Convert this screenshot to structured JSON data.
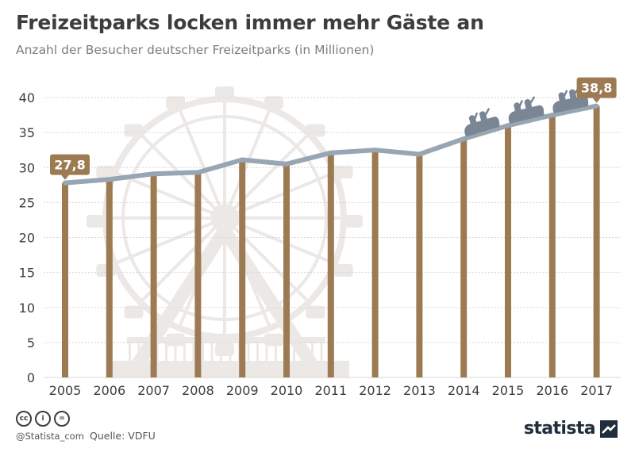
{
  "title": "Freizeitparks locken immer mehr Gäste an",
  "subtitle": "Anzahl der Besucher deutscher Freizeitparks (in Millionen)",
  "chart_data": {
    "type": "bar",
    "categories": [
      "2005",
      "2006",
      "2007",
      "2008",
      "2009",
      "2010",
      "2011",
      "2012",
      "2013",
      "2014",
      "2015",
      "2016",
      "2017"
    ],
    "values": [
      27.8,
      28.3,
      29.1,
      29.3,
      31.1,
      30.5,
      32.1,
      32.5,
      31.9,
      34.1,
      36.0,
      37.5,
      38.8
    ],
    "ylim": [
      0,
      40
    ],
    "yticks": [
      0,
      5,
      10,
      15,
      20,
      25,
      30,
      35,
      40
    ],
    "line_overlay": true,
    "grid": true,
    "value_labels": [
      {
        "category": "2005",
        "text": "27,8"
      },
      {
        "category": "2017",
        "text": "38,8"
      }
    ],
    "colors": {
      "bar": "#9c7a52",
      "line": "#98a6b4",
      "grid": "#d7d7d7",
      "label_bg": "#9c7a52",
      "label_text": "#ffffff",
      "axis_text": "#3d3d3d",
      "decoration": "#ece8e6",
      "boats": "#7a8694"
    },
    "background_decoration": "ferris-wheel",
    "foreground_decoration": "roller-coaster-cars"
  },
  "footer": {
    "cc_icons": [
      "cc",
      "i",
      "="
    ],
    "handle": "@Statista_com",
    "source": "Quelle: VDFU",
    "logo": "statista"
  }
}
